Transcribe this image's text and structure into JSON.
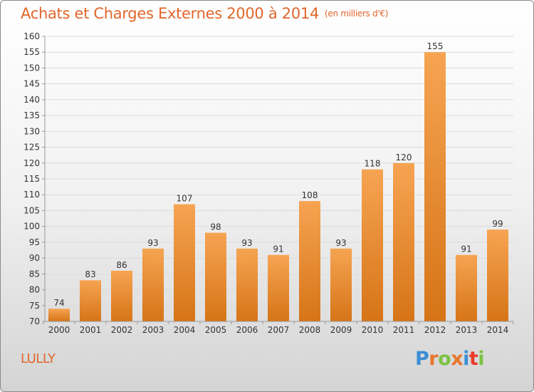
{
  "header": {
    "title": "Achats et Charges Externes 2000 à 2014",
    "subtitle": "(en milliers d'€)"
  },
  "footer": {
    "commune": "LULLY",
    "logo_text": "Proxiti",
    "logo_colors": [
      "#3b8fd6",
      "#e8762b",
      "#7cc242",
      "#e8762b",
      "#3b8fd6",
      "#e83b2b",
      "#7cc242"
    ]
  },
  "colors": {
    "accent": "#e0662c",
    "bar_light": "#f6a452",
    "bar_dark": "#d67417"
  },
  "chart_data": {
    "type": "bar",
    "title": "Achats et Charges Externes 2000 à 2014",
    "subtitle": "(en milliers d'€)",
    "categories": [
      "2000",
      "2001",
      "2002",
      "2003",
      "2004",
      "2005",
      "2006",
      "2007",
      "2008",
      "2009",
      "2010",
      "2011",
      "2012",
      "2013",
      "2014"
    ],
    "values": [
      74,
      83,
      86,
      93,
      107,
      98,
      93,
      91,
      108,
      93,
      118,
      120,
      155,
      91,
      99
    ],
    "ylim": [
      70,
      160
    ],
    "yticks": [
      70,
      75,
      80,
      85,
      90,
      95,
      100,
      105,
      110,
      115,
      120,
      125,
      130,
      135,
      140,
      145,
      150,
      155,
      160
    ],
    "grid": true,
    "data_labels": true
  }
}
